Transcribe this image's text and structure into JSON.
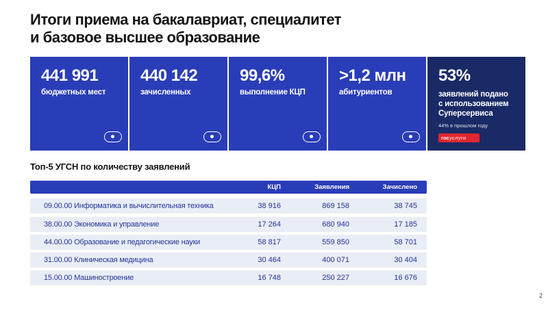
{
  "title": {
    "line1": "Итоги приема на бакалавриат, специалитет",
    "line2": "и базовое высшее образование"
  },
  "stats": [
    {
      "value": "441 991",
      "label": "бюджетных мест",
      "color": "#2a3db8"
    },
    {
      "value": "440 142",
      "label": "зачисленных",
      "color": "#2a3db8"
    },
    {
      "value": "99,6%",
      "label": "выполнение КЦП",
      "color": "#2a3db8"
    },
    {
      "value": ">1,2 млн",
      "label": "абитуриентов",
      "color": "#2a3db8"
    },
    {
      "value": "53%",
      "label1": "заявлений подано",
      "label2": "с использованием",
      "label3": "Суперсервиса",
      "note": "44% в прошлом году",
      "logo_a": "гос",
      "logo_b": "услуги",
      "color": "#1a2a66"
    }
  ],
  "icons": {
    "toggle": "toggle-icon",
    "logo": "gosuslugi-logo"
  },
  "table": {
    "title": "Топ-5 УГСН по количеству заявлений",
    "columns": [
      "КЦП",
      "Заявления",
      "Зачислено"
    ],
    "rows": [
      {
        "name": "09.00.00 Информатика и вычислительная техника",
        "kcp": "38 916",
        "apps": "869 158",
        "enrolled": "38 745"
      },
      {
        "name": "38.00.00 Экономика и управление",
        "kcp": "17 264",
        "apps": "680 940",
        "enrolled": "17 185"
      },
      {
        "name": "44.00.00 Образование и педагогические науки",
        "kcp": "58 817",
        "apps": "559 850",
        "enrolled": "58 701"
      },
      {
        "name": "31.00.00 Клиническая медицина",
        "kcp": "30 464",
        "apps": "400 071",
        "enrolled": "30 404"
      },
      {
        "name": "15.00.00 Машиностроение",
        "kcp": "16 748",
        "apps": "250 227",
        "enrolled": "16 676"
      }
    ]
  },
  "page_number": "2"
}
